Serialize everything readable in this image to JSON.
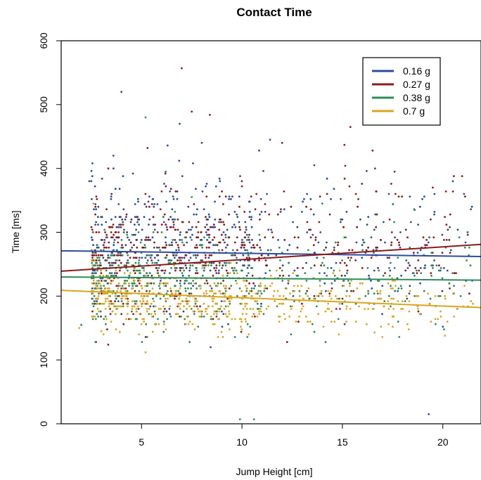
{
  "chart_data": {
    "type": "scatter",
    "title": "Contact Time",
    "xlabel": "Jump Height [cm]",
    "ylabel": "Time [ms]",
    "xlim": [
      1.0,
      21.9
    ],
    "ylim": [
      0,
      600
    ],
    "xticks": [
      5,
      10,
      15,
      20
    ],
    "yticks": [
      0,
      100,
      200,
      300,
      400,
      500,
      600
    ],
    "xtick_labels": [
      "5",
      "10",
      "15",
      "20"
    ],
    "ytick_labels": [
      "0",
      "100",
      "200",
      "300",
      "400",
      "500",
      "600"
    ],
    "grid": false,
    "legend_position": "top-right",
    "point_count_per_series": 520,
    "series": [
      {
        "name": "0.16 g",
        "color": "#2b4c9b",
        "trend": {
          "x": [
            1.0,
            21.9
          ],
          "y": [
            271,
            262
          ]
        },
        "outliers": [
          [
            4.0,
            520
          ],
          [
            6.9,
            470
          ],
          [
            8.0,
            440
          ],
          [
            11.4,
            445
          ],
          [
            2.4,
            380
          ],
          [
            19.3,
            15
          ],
          [
            3.6,
            420
          ],
          [
            13.6,
            405
          ],
          [
            17.6,
            395
          ],
          [
            20.5,
            380
          ]
        ]
      },
      {
        "name": "0.27 g",
        "color": "#8b1a1a",
        "trend": {
          "x": [
            1.0,
            21.9
          ],
          "y": [
            239,
            281
          ]
        },
        "outliers": [
          [
            7.0,
            557
          ],
          [
            7.5,
            489
          ],
          [
            8.4,
            484
          ],
          [
            15.4,
            465
          ],
          [
            15.1,
            437
          ],
          [
            12.0,
            440
          ],
          [
            16.5,
            428
          ],
          [
            5.3,
            432
          ],
          [
            10.0,
            372
          ],
          [
            19.5,
            370
          ]
        ]
      },
      {
        "name": "0.38 g",
        "color": "#2e8b57",
        "trend": {
          "x": [
            1.0,
            21.9
          ],
          "y": [
            230,
            225
          ]
        },
        "outliers": [
          [
            5.2,
            480
          ],
          [
            9.9,
            7
          ],
          [
            10.6,
            7
          ],
          [
            6.2,
            395
          ],
          [
            2.0,
            155
          ],
          [
            7.5,
            355
          ],
          [
            14.0,
            345
          ],
          [
            18.6,
            335
          ]
        ]
      },
      {
        "name": "0.7 g",
        "color": "#daa520",
        "trend": {
          "x": [
            1.0,
            21.9
          ],
          "y": [
            209,
            182
          ]
        },
        "outliers": [
          [
            5.2,
            112
          ],
          [
            2.6,
            345
          ],
          [
            1.9,
            150
          ],
          [
            3.0,
            145
          ],
          [
            18.3,
            148
          ],
          [
            16.6,
            143
          ],
          [
            20.1,
            138
          ],
          [
            13.4,
            160
          ]
        ]
      }
    ]
  }
}
